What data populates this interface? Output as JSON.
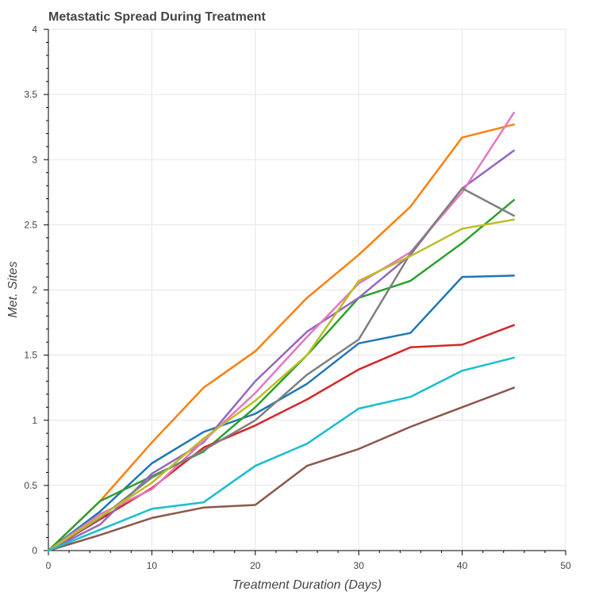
{
  "chart_data": {
    "type": "line",
    "title": "Metastatic Spread During Treatment",
    "xlabel": "Treatment Duration (Days)",
    "ylabel": "Met. Sites",
    "xlim": [
      0,
      50
    ],
    "ylim": [
      0,
      4
    ],
    "x_ticks": [
      0,
      10,
      20,
      30,
      40,
      50
    ],
    "x_tick_labels": [
      "0",
      "10",
      "20",
      "30",
      "40",
      "50"
    ],
    "y_ticks": [
      0,
      0.5,
      1,
      1.5,
      2,
      2.5,
      3,
      3.5,
      4
    ],
    "y_tick_labels": [
      "0",
      "0.5",
      "1",
      "1.5",
      "2",
      "2.5",
      "3",
      "3.5",
      "4"
    ],
    "grid": true,
    "x": [
      0,
      5,
      10,
      15,
      20,
      25,
      30,
      35,
      40,
      45
    ],
    "series": [
      {
        "color": "#1f77b4",
        "values": [
          0,
          0.3,
          0.67,
          0.91,
          1.05,
          1.28,
          1.59,
          1.67,
          2.1,
          2.11
        ]
      },
      {
        "color": "#ff7f0e",
        "values": [
          0,
          0.38,
          0.83,
          1.25,
          1.53,
          1.94,
          2.27,
          2.64,
          3.17,
          3.27
        ]
      },
      {
        "color": "#2ca02c",
        "values": [
          0,
          0.38,
          0.57,
          0.76,
          1.1,
          1.5,
          1.94,
          2.07,
          2.36,
          2.69
        ]
      },
      {
        "color": "#d62728",
        "values": [
          0,
          0.24,
          0.48,
          0.79,
          0.96,
          1.16,
          1.39,
          1.56,
          1.58,
          1.73
        ]
      },
      {
        "color": "#9467bd",
        "values": [
          0,
          0.2,
          0.59,
          0.83,
          1.3,
          1.68,
          1.94,
          2.27,
          2.78,
          3.07
        ]
      },
      {
        "color": "#8c564b",
        "values": [
          0,
          0.12,
          0.25,
          0.33,
          0.35,
          0.65,
          0.78,
          0.95,
          1.1,
          1.25
        ]
      },
      {
        "color": "#e377c2",
        "values": [
          0,
          0.28,
          0.47,
          0.84,
          1.21,
          1.64,
          2.05,
          2.29,
          2.75,
          3.36
        ]
      },
      {
        "color": "#7f7f7f",
        "values": [
          0,
          0.25,
          0.56,
          0.77,
          1.0,
          1.35,
          1.62,
          2.28,
          2.78,
          2.57
        ]
      },
      {
        "color": "#bcbd22",
        "values": [
          0,
          0.26,
          0.52,
          0.86,
          1.15,
          1.5,
          2.07,
          2.26,
          2.47,
          2.54
        ]
      },
      {
        "color": "#17becf",
        "values": [
          0,
          0.16,
          0.32,
          0.37,
          0.65,
          0.82,
          1.09,
          1.18,
          1.38,
          1.48
        ]
      }
    ]
  }
}
